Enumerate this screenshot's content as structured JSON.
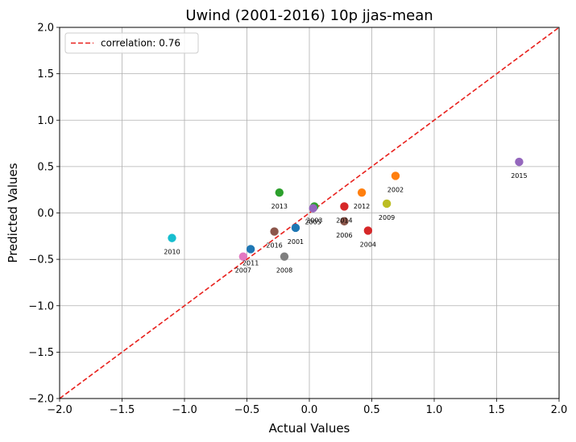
{
  "chart_data": {
    "type": "scatter",
    "title": "Uwind (2001-2016) 10p jjas-mean",
    "xlabel": "Actual Values",
    "ylabel": "Predicted Values",
    "xlim": [
      -2.0,
      2.0
    ],
    "ylim": [
      -2.0,
      2.0
    ],
    "xticks": [
      "-2.0",
      "-1.5",
      "-1.0",
      "-0.5",
      "0.0",
      "0.5",
      "1.0",
      "1.5",
      "2.0"
    ],
    "yticks": [
      "-2.0",
      "-1.5",
      "-1.0",
      "-0.5",
      "0.0",
      "0.5",
      "1.0",
      "1.5",
      "2.0"
    ],
    "grid": true,
    "legend": {
      "position": "top-left",
      "entries": [
        "correlation: 0.76"
      ]
    },
    "reference_line": {
      "style": "dashed",
      "color": "#e8201c",
      "from": [
        -2.0,
        -2.0
      ],
      "to": [
        2.0,
        2.0
      ]
    },
    "points": [
      {
        "label": "2001",
        "x": -0.11,
        "y": -0.16,
        "color": "#1f77b4"
      },
      {
        "label": "2002",
        "x": 0.69,
        "y": 0.4,
        "color": "#ff7f0e"
      },
      {
        "label": "2003",
        "x": 0.04,
        "y": 0.07,
        "color": "#2ca02c"
      },
      {
        "label": "2004",
        "x": 0.47,
        "y": -0.19,
        "color": "#d62728"
      },
      {
        "label": "2005",
        "x": 0.03,
        "y": 0.05,
        "color": "#9467bd"
      },
      {
        "label": "2006",
        "x": 0.28,
        "y": -0.09,
        "color": "#8c564b"
      },
      {
        "label": "2007",
        "x": -0.53,
        "y": -0.47,
        "color": "#e377c2"
      },
      {
        "label": "2008",
        "x": -0.2,
        "y": -0.47,
        "color": "#7f7f7f"
      },
      {
        "label": "2009",
        "x": 0.62,
        "y": 0.1,
        "color": "#bcbd22"
      },
      {
        "label": "2010",
        "x": -1.1,
        "y": -0.27,
        "color": "#17becf"
      },
      {
        "label": "2011",
        "x": -0.47,
        "y": -0.39,
        "color": "#1f77b4"
      },
      {
        "label": "2012",
        "x": 0.42,
        "y": 0.22,
        "color": "#ff7f0e"
      },
      {
        "label": "2013",
        "x": -0.24,
        "y": 0.22,
        "color": "#2ca02c"
      },
      {
        "label": "2014",
        "x": 0.28,
        "y": 0.07,
        "color": "#d62728"
      },
      {
        "label": "2015",
        "x": 1.68,
        "y": 0.55,
        "color": "#9467bd"
      },
      {
        "label": "2016",
        "x": -0.28,
        "y": -0.2,
        "color": "#8c564b"
      }
    ]
  }
}
